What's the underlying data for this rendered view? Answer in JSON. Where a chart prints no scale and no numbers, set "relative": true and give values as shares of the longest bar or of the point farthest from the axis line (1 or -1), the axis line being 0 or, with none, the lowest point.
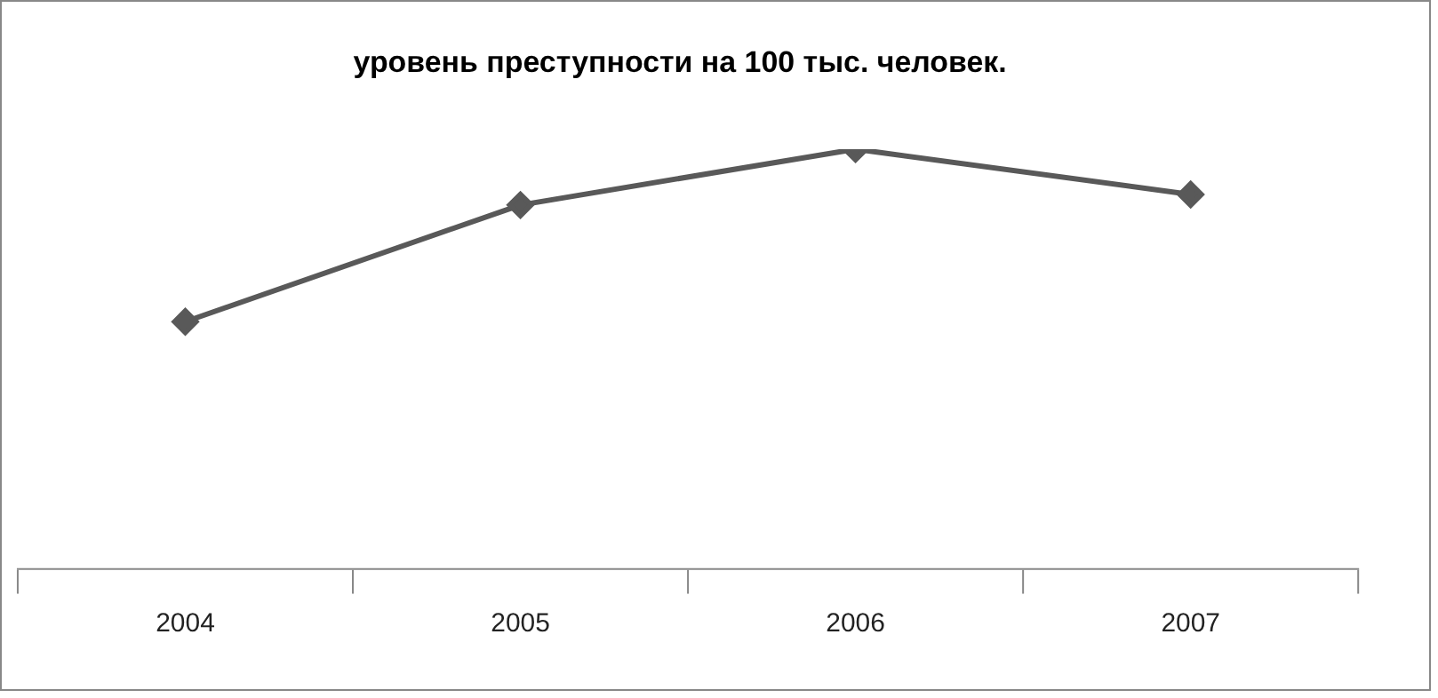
{
  "chart_data": {
    "type": "line",
    "title": "уровень преступности на 100 тыс. человек.",
    "categories": [
      "2004",
      "2005",
      "2006",
      "2007"
    ],
    "values": [
      0.589,
      0.867,
      1,
      0.892
    ],
    "color": "#595959",
    "relative": true,
    "marker": "diamond",
    "grid": false,
    "legend": false
  }
}
